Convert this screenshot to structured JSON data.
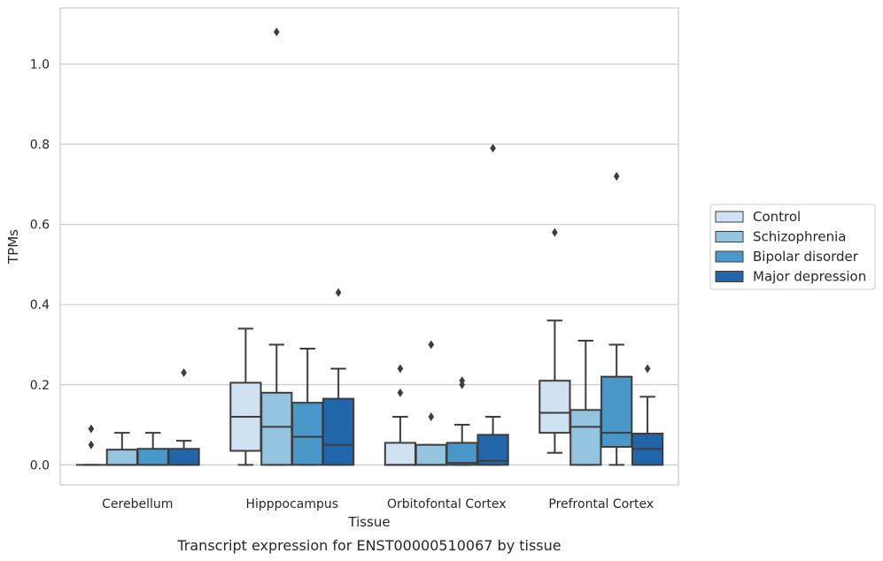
{
  "caption": "Transcript expression for ENST00000510067 by tissue",
  "colors": {
    "Control": "#d0e1f2",
    "Schizophrenia": "#94c4df",
    "Bipolar disorder": "#4a98c9",
    "Major depression": "#2165ab",
    "grid": "#cccccc",
    "box_edge": "#3d3d3d"
  },
  "chart_data": {
    "type": "boxplot",
    "xlabel": "Tissue",
    "ylabel": "TPMs",
    "ylim": [
      -0.05,
      1.14
    ],
    "yticks": [
      0.0,
      0.2,
      0.4,
      0.6,
      0.8,
      1.0
    ],
    "grid": "horizontal",
    "legend_position": "right",
    "categories": [
      "Cerebellum",
      "Hipppocampus",
      "Orbitofontal Cortex",
      "Prefrontal Cortex"
    ],
    "series": [
      {
        "name": "Control",
        "boxes": [
          {
            "whislo": 0.0,
            "q1": 0.0,
            "med": 0.0,
            "q3": 0.0,
            "whishi": 0.0,
            "fliers": [
              0.05,
              0.09
            ]
          },
          {
            "whislo": 0.0,
            "q1": 0.035,
            "med": 0.12,
            "q3": 0.205,
            "whishi": 0.34,
            "fliers": []
          },
          {
            "whislo": 0.0,
            "q1": 0.0,
            "med": 0.0,
            "q3": 0.055,
            "whishi": 0.12,
            "fliers": [
              0.18,
              0.24
            ]
          },
          {
            "whislo": 0.03,
            "q1": 0.08,
            "med": 0.13,
            "q3": 0.21,
            "whishi": 0.36,
            "fliers": [
              0.58
            ]
          }
        ]
      },
      {
        "name": "Schizophrenia",
        "boxes": [
          {
            "whislo": 0.0,
            "q1": 0.0,
            "med": 0.0,
            "q3": 0.038,
            "whishi": 0.08,
            "fliers": []
          },
          {
            "whislo": 0.0,
            "q1": 0.0,
            "med": 0.095,
            "q3": 0.18,
            "whishi": 0.3,
            "fliers": [
              1.08
            ]
          },
          {
            "whislo": 0.0,
            "q1": 0.0,
            "med": 0.0,
            "q3": 0.05,
            "whishi": 0.05,
            "fliers": [
              0.12,
              0.3
            ]
          },
          {
            "whislo": 0.0,
            "q1": 0.0,
            "med": 0.095,
            "q3": 0.137,
            "whishi": 0.31,
            "fliers": []
          }
        ]
      },
      {
        "name": "Bipolar disorder",
        "boxes": [
          {
            "whislo": 0.0,
            "q1": 0.0,
            "med": 0.0,
            "q3": 0.04,
            "whishi": 0.08,
            "fliers": []
          },
          {
            "whislo": 0.0,
            "q1": 0.0,
            "med": 0.07,
            "q3": 0.155,
            "whishi": 0.29,
            "fliers": []
          },
          {
            "whislo": 0.0,
            "q1": 0.0,
            "med": 0.005,
            "q3": 0.055,
            "whishi": 0.1,
            "fliers": [
              0.2,
              0.21
            ]
          },
          {
            "whislo": 0.0,
            "q1": 0.045,
            "med": 0.08,
            "q3": 0.22,
            "whishi": 0.3,
            "fliers": [
              0.72
            ]
          }
        ]
      },
      {
        "name": "Major depression",
        "boxes": [
          {
            "whislo": 0.0,
            "q1": 0.0,
            "med": 0.0,
            "q3": 0.04,
            "whishi": 0.06,
            "fliers": [
              0.23
            ]
          },
          {
            "whislo": 0.0,
            "q1": 0.0,
            "med": 0.05,
            "q3": 0.165,
            "whishi": 0.24,
            "fliers": [
              0.43
            ]
          },
          {
            "whislo": 0.0,
            "q1": 0.0,
            "med": 0.01,
            "q3": 0.075,
            "whishi": 0.12,
            "fliers": [
              0.79
            ]
          },
          {
            "whislo": 0.0,
            "q1": 0.0,
            "med": 0.04,
            "q3": 0.078,
            "whishi": 0.17,
            "fliers": [
              0.24
            ]
          }
        ]
      }
    ]
  }
}
